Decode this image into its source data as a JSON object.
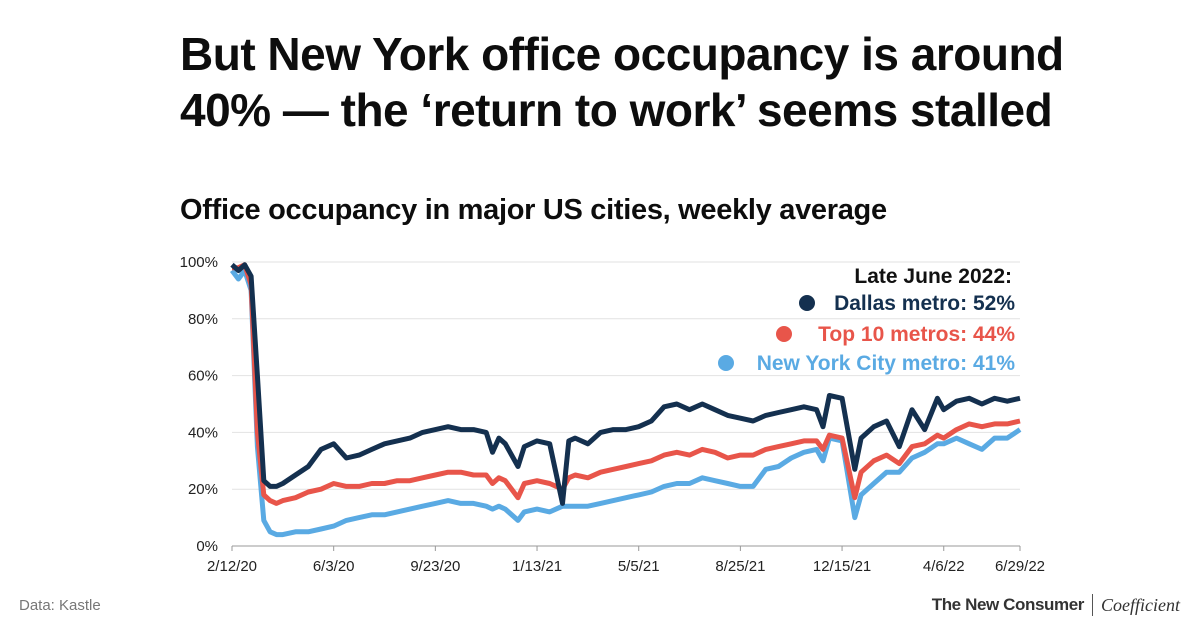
{
  "headline": {
    "line1": "But New York office occupancy is around",
    "line2": "40% — the ‘return to work’ seems stalled"
  },
  "chart_title": "Office occupancy in major US cities, weekly average",
  "footer": {
    "source": "Data: Kastle",
    "brand_primary": "The New Consumer",
    "brand_secondary": "Coefficient"
  },
  "chart_data": {
    "type": "line",
    "title": "Office occupancy in major US cities, weekly average",
    "xlabel": "",
    "ylabel": "",
    "x_start": "2/12/20",
    "x_end": "6/29/22",
    "x_ticks": [
      "2/12/20",
      "6/3/20",
      "9/23/20",
      "1/13/21",
      "5/5/21",
      "8/25/21",
      "12/15/21",
      "4/6/22",
      "6/29/22"
    ],
    "y_ticks": [
      "0%",
      "20%",
      "40%",
      "60%",
      "80%",
      "100%"
    ],
    "ylim": [
      0,
      100
    ],
    "grid": "horizontal",
    "legend": {
      "position": "top-right",
      "title": "Late June 2022:",
      "entries": [
        {
          "label": "Dallas metro: 52%",
          "color": "#14304f"
        },
        {
          "label": "Top 10 metros: 44%",
          "color": "#e8554a"
        },
        {
          "label": "New York City metro: 41%",
          "color": "#5aaae3"
        }
      ]
    },
    "series": [
      {
        "name": "Dallas metro",
        "color": "#14304f",
        "x": [
          "2/12/20",
          "2/19/20",
          "2/26/20",
          "3/4/20",
          "3/11/20",
          "3/18/20",
          "3/25/20",
          "4/1/20",
          "4/8/20",
          "4/22/20",
          "5/6/20",
          "5/20/20",
          "6/3/20",
          "6/17/20",
          "7/1/20",
          "7/15/20",
          "7/29/20",
          "8/12/20",
          "8/26/20",
          "9/9/20",
          "9/23/20",
          "10/7/20",
          "10/21/20",
          "11/4/20",
          "11/18/20",
          "11/25/20",
          "12/2/20",
          "12/9/20",
          "12/23/20",
          "12/30/20",
          "1/13/21",
          "1/27/21",
          "2/10/21",
          "2/17/21",
          "2/24/21",
          "3/10/21",
          "3/24/21",
          "4/7/21",
          "4/21/21",
          "5/5/21",
          "5/19/21",
          "6/2/21",
          "6/16/21",
          "6/30/21",
          "7/14/21",
          "7/28/21",
          "8/11/21",
          "8/25/21",
          "9/8/21",
          "9/22/21",
          "10/6/21",
          "10/20/21",
          "11/3/21",
          "11/17/21",
          "11/24/21",
          "12/1/21",
          "12/15/21",
          "12/29/21",
          "1/5/22",
          "1/19/22",
          "2/2/22",
          "2/16/22",
          "3/2/22",
          "3/16/22",
          "3/30/22",
          "4/6/22",
          "4/20/22",
          "5/4/22",
          "5/18/22",
          "6/1/22",
          "6/15/22",
          "6/29/22"
        ],
        "values": [
          99,
          97,
          99,
          95,
          60,
          23,
          21,
          21,
          22,
          25,
          28,
          34,
          36,
          31,
          32,
          34,
          36,
          37,
          38,
          40,
          41,
          42,
          41,
          41,
          40,
          33,
          38,
          36,
          28,
          35,
          37,
          36,
          15,
          37,
          38,
          36,
          40,
          41,
          41,
          42,
          44,
          49,
          50,
          48,
          50,
          48,
          46,
          45,
          44,
          46,
          47,
          48,
          49,
          48,
          42,
          53,
          52,
          27,
          38,
          42,
          44,
          35,
          48,
          41,
          52,
          48,
          51,
          52,
          50,
          52,
          51,
          52
        ],
        "end_label": "52%"
      },
      {
        "name": "Top 10 metros",
        "color": "#e8554a",
        "x": [
          "2/12/20",
          "2/19/20",
          "2/26/20",
          "3/4/20",
          "3/11/20",
          "3/18/20",
          "3/25/20",
          "4/1/20",
          "4/8/20",
          "4/22/20",
          "5/6/20",
          "5/20/20",
          "6/3/20",
          "6/17/20",
          "7/1/20",
          "7/15/20",
          "7/29/20",
          "8/12/20",
          "8/26/20",
          "9/9/20",
          "9/23/20",
          "10/7/20",
          "10/21/20",
          "11/4/20",
          "11/18/20",
          "11/25/20",
          "12/2/20",
          "12/9/20",
          "12/23/20",
          "12/30/20",
          "1/13/21",
          "1/27/21",
          "2/10/21",
          "2/17/21",
          "2/24/21",
          "3/10/21",
          "3/24/21",
          "4/7/21",
          "4/21/21",
          "5/5/21",
          "5/19/21",
          "6/2/21",
          "6/16/21",
          "6/30/21",
          "7/14/21",
          "7/28/21",
          "8/11/21",
          "8/25/21",
          "9/8/21",
          "9/22/21",
          "10/6/21",
          "10/20/21",
          "11/3/21",
          "11/17/21",
          "11/24/21",
          "12/1/21",
          "12/15/21",
          "12/29/21",
          "1/5/22",
          "1/19/22",
          "2/2/22",
          "2/16/22",
          "3/2/22",
          "3/16/22",
          "3/30/22",
          "4/6/22",
          "4/20/22",
          "5/4/22",
          "5/18/22",
          "6/1/22",
          "6/15/22",
          "6/29/22"
        ],
        "values": [
          98,
          98,
          99,
          92,
          40,
          18,
          16,
          15,
          16,
          17,
          19,
          20,
          22,
          21,
          21,
          22,
          22,
          23,
          23,
          24,
          25,
          26,
          26,
          25,
          25,
          22,
          24,
          23,
          17,
          22,
          23,
          22,
          20,
          24,
          25,
          24,
          26,
          27,
          28,
          29,
          30,
          32,
          33,
          32,
          34,
          33,
          31,
          32,
          32,
          34,
          35,
          36,
          37,
          37,
          34,
          39,
          38,
          17,
          26,
          30,
          32,
          29,
          35,
          36,
          39,
          38,
          41,
          43,
          42,
          43,
          43,
          44
        ],
        "end_label": "44%"
      },
      {
        "name": "New York City metro",
        "color": "#5aaae3",
        "x": [
          "2/12/20",
          "2/19/20",
          "2/26/20",
          "3/4/20",
          "3/11/20",
          "3/18/20",
          "3/25/20",
          "4/1/20",
          "4/8/20",
          "4/22/20",
          "5/6/20",
          "5/20/20",
          "6/3/20",
          "6/17/20",
          "7/1/20",
          "7/15/20",
          "7/29/20",
          "8/12/20",
          "8/26/20",
          "9/9/20",
          "9/23/20",
          "10/7/20",
          "10/21/20",
          "11/4/20",
          "11/18/20",
          "11/25/20",
          "12/2/20",
          "12/9/20",
          "12/23/20",
          "12/30/20",
          "1/13/21",
          "1/27/21",
          "2/10/21",
          "2/17/21",
          "2/24/21",
          "3/10/21",
          "3/24/21",
          "4/7/21",
          "4/21/21",
          "5/5/21",
          "5/19/21",
          "6/2/21",
          "6/16/21",
          "6/30/21",
          "7/14/21",
          "7/28/21",
          "8/11/21",
          "8/25/21",
          "9/8/21",
          "9/22/21",
          "10/6/21",
          "10/20/21",
          "11/3/21",
          "11/17/21",
          "11/24/21",
          "12/1/21",
          "12/15/21",
          "12/29/21",
          "1/5/22",
          "1/19/22",
          "2/2/22",
          "2/16/22",
          "3/2/22",
          "3/16/22",
          "3/30/22",
          "4/6/22",
          "4/20/22",
          "5/4/22",
          "5/18/22",
          "6/1/22",
          "6/15/22",
          "6/29/22"
        ],
        "values": [
          97,
          94,
          97,
          90,
          35,
          9,
          5,
          4,
          4,
          5,
          5,
          6,
          7,
          9,
          10,
          11,
          11,
          12,
          13,
          14,
          15,
          16,
          15,
          15,
          14,
          13,
          14,
          13,
          9,
          12,
          13,
          12,
          14,
          14,
          14,
          14,
          15,
          16,
          17,
          18,
          19,
          21,
          22,
          22,
          24,
          23,
          22,
          21,
          21,
          27,
          28,
          31,
          33,
          34,
          30,
          38,
          37,
          10,
          18,
          22,
          26,
          26,
          31,
          33,
          36,
          36,
          38,
          36,
          34,
          38,
          38,
          41
        ],
        "end_label": "41%"
      }
    ]
  }
}
